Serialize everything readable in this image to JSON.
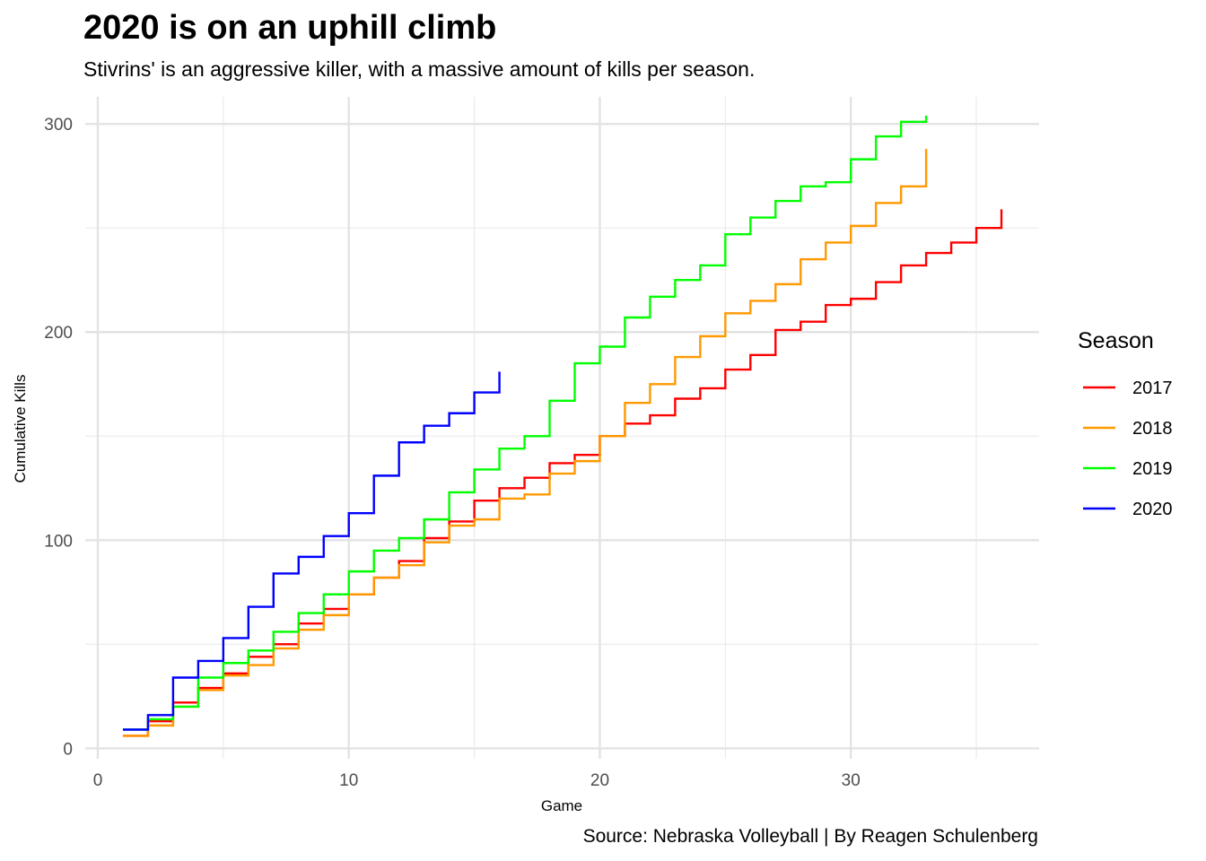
{
  "chart_data": {
    "type": "line",
    "step": true,
    "title": "2020 is on an uphill climb",
    "subtitle": "Stivrins' is an aggressive killer, with a massive amount of kills per season.",
    "caption": "Source: Nebraska Volleyball | By Reagen Schulenberg",
    "xlabel": "Game",
    "ylabel": "Cumulative Kills",
    "xlim": [
      -0.5,
      37.5
    ],
    "ylim": [
      -5,
      313
    ],
    "x_ticks": [
      0,
      10,
      20,
      30
    ],
    "y_ticks": [
      0,
      100,
      200,
      300
    ],
    "grid": true,
    "legend": {
      "title": "Season",
      "position": "right"
    },
    "series": [
      {
        "name": "2017",
        "color": "#FF0000",
        "x": [
          1,
          2,
          3,
          4,
          5,
          6,
          7,
          8,
          9,
          10,
          11,
          12,
          13,
          14,
          15,
          16,
          17,
          18,
          19,
          20,
          21,
          22,
          23,
          24,
          25,
          26,
          27,
          28,
          29,
          30,
          31,
          32,
          33,
          34,
          35,
          36
        ],
        "values": [
          6,
          13,
          22,
          29,
          36,
          44,
          50,
          60,
          67,
          74,
          82,
          90,
          101,
          109,
          119,
          125,
          130,
          137,
          141,
          150,
          156,
          160,
          168,
          173,
          182,
          189,
          201,
          205,
          213,
          216,
          224,
          232,
          238,
          243,
          250,
          259
        ]
      },
      {
        "name": "2018",
        "color": "#FF9900",
        "x": [
          1,
          2,
          3,
          4,
          5,
          6,
          7,
          8,
          9,
          10,
          11,
          12,
          13,
          14,
          15,
          16,
          17,
          18,
          19,
          20,
          21,
          22,
          23,
          24,
          25,
          26,
          27,
          28,
          29,
          30,
          31,
          32,
          33
        ],
        "values": [
          6,
          11,
          20,
          28,
          35,
          40,
          48,
          57,
          64,
          74,
          82,
          88,
          99,
          107,
          110,
          120,
          122,
          132,
          138,
          150,
          166,
          175,
          188,
          198,
          209,
          215,
          223,
          235,
          243,
          251,
          262,
          270,
          288
        ]
      },
      {
        "name": "2019",
        "color": "#00FF00",
        "x": [
          1,
          2,
          3,
          4,
          5,
          6,
          7,
          8,
          9,
          10,
          11,
          12,
          13,
          14,
          15,
          16,
          17,
          18,
          19,
          20,
          21,
          22,
          23,
          24,
          25,
          26,
          27,
          28,
          29,
          30,
          31,
          32,
          33
        ],
        "values": [
          9,
          14,
          20,
          34,
          41,
          47,
          56,
          65,
          74,
          85,
          95,
          101,
          110,
          123,
          134,
          144,
          150,
          167,
          185,
          193,
          207,
          217,
          225,
          232,
          247,
          255,
          263,
          270,
          272,
          283,
          294,
          301,
          304
        ]
      },
      {
        "name": "2020",
        "color": "#0000FF",
        "x": [
          1,
          2,
          3,
          4,
          5,
          6,
          7,
          8,
          9,
          10,
          11,
          12,
          13,
          14,
          15,
          16
        ],
        "values": [
          9,
          16,
          34,
          42,
          53,
          68,
          84,
          92,
          102,
          113,
          131,
          147,
          155,
          161,
          171,
          181
        ]
      }
    ]
  }
}
